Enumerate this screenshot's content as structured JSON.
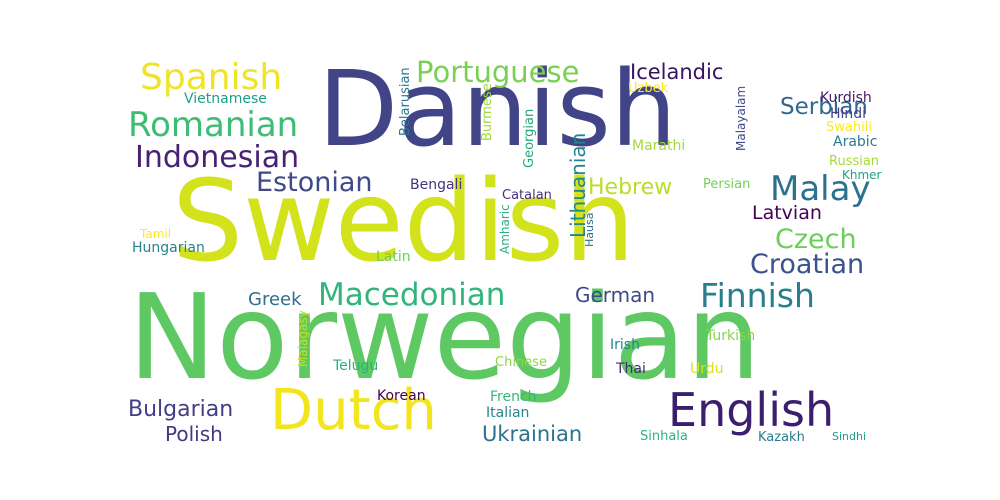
{
  "words": [
    {
      "text": "Norwegian",
      "color": "#5ec962"
    },
    {
      "text": "Swedish",
      "color": "#d2e21b"
    },
    {
      "text": "Danish",
      "color": "#414487"
    },
    {
      "text": "Dutch",
      "color": "#f2e51d"
    },
    {
      "text": "English",
      "color": "#3b1f6e"
    },
    {
      "text": "Spanish",
      "color": "#f0e42a"
    },
    {
      "text": "Portuguese",
      "color": "#7ad151"
    },
    {
      "text": "Romanian",
      "color": "#3dbc74"
    },
    {
      "text": "Indonesian",
      "color": "#482173"
    },
    {
      "text": "Estonian",
      "color": "#3e4a89"
    },
    {
      "text": "Malay",
      "color": "#2c728e"
    },
    {
      "text": "Macedonian",
      "color": "#31b57b"
    },
    {
      "text": "Finnish",
      "color": "#287d8e"
    },
    {
      "text": "Croatian",
      "color": "#3b528b"
    },
    {
      "text": "Czech",
      "color": "#6ccd5a"
    },
    {
      "text": "Icelandic",
      "color": "#35155f"
    },
    {
      "text": "Serbian",
      "color": "#31688e"
    },
    {
      "text": "Hebrew",
      "color": "#bade28"
    },
    {
      "text": "Latvian",
      "color": "#440154"
    },
    {
      "text": "Bulgarian",
      "color": "#433e85"
    },
    {
      "text": "Polish",
      "color": "#453781"
    },
    {
      "text": "Ukrainian",
      "color": "#2c728e"
    },
    {
      "text": "German",
      "color": "#3e4989"
    },
    {
      "text": "Greek",
      "color": "#2e6f8e"
    },
    {
      "text": "Lithuanian",
      "color": "#25858e"
    },
    {
      "text": "Vietnamese",
      "color": "#1f9e89"
    },
    {
      "text": "Kurdish",
      "color": "#48186a"
    },
    {
      "text": "Hindi",
      "color": "#414487"
    },
    {
      "text": "Swahili",
      "color": "#fde725"
    },
    {
      "text": "Arabic",
      "color": "#287c8e"
    },
    {
      "text": "Russian",
      "color": "#a8db34"
    },
    {
      "text": "Khmer",
      "color": "#1fa187"
    },
    {
      "text": "Uzbek",
      "color": "#fde725"
    },
    {
      "text": "Marathi",
      "color": "#a5db36"
    },
    {
      "text": "Persian",
      "color": "#73d056"
    },
    {
      "text": "Bengali",
      "color": "#46337e"
    },
    {
      "text": "Catalan",
      "color": "#46307e"
    },
    {
      "text": "Tamil",
      "color": "#fde725"
    },
    {
      "text": "Hungarian",
      "color": "#25848e"
    },
    {
      "text": "Latin",
      "color": "#6ece58"
    },
    {
      "text": "Turkish",
      "color": "#86d549"
    },
    {
      "text": "Irish",
      "color": "#24868e"
    },
    {
      "text": "Telugu",
      "color": "#2ab07f"
    },
    {
      "text": "Chinese",
      "color": "#8ed645"
    },
    {
      "text": "Thai",
      "color": "#482878"
    },
    {
      "text": "Urdu",
      "color": "#dae319"
    },
    {
      "text": "Korean",
      "color": "#440154"
    },
    {
      "text": "French",
      "color": "#35b779"
    },
    {
      "text": "Italian",
      "color": "#25848e"
    },
    {
      "text": "Sinhala",
      "color": "#2db27d"
    },
    {
      "text": "Kazakh",
      "color": "#287d8e"
    },
    {
      "text": "Sindhi",
      "color": "#1fa187"
    },
    {
      "text": "Belarusian",
      "color": "#2a788e"
    },
    {
      "text": "Burmese",
      "color": "#a2da37"
    },
    {
      "text": "Georgian",
      "color": "#22a785"
    },
    {
      "text": "Malayalam",
      "color": "#3e4989"
    },
    {
      "text": "Amharic",
      "color": "#2ab07f"
    },
    {
      "text": "Hausa",
      "color": "#2e6e8e"
    },
    {
      "text": "Malagasy",
      "color": "#c8e020"
    }
  ]
}
